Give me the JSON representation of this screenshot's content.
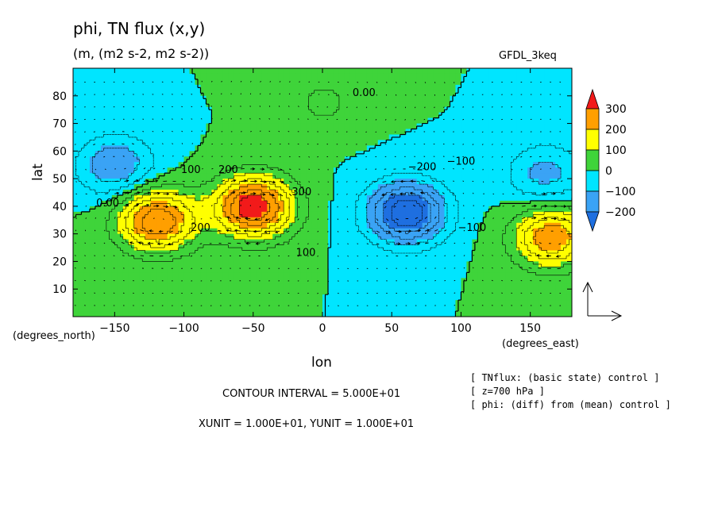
{
  "chart_data": {
    "type": "heatmap",
    "title": "phi, TN flux (x,y)",
    "subtitle": "(m, (m2 s-2, m2 s-2))",
    "model_label": "GFDL_3keq",
    "xlabel": "lon",
    "ylabel": "lat",
    "x_unit_label": "(degrees_east)",
    "y_unit_label": "(degrees_north)",
    "xlim": [
      -180,
      180
    ],
    "ylim": [
      0,
      90
    ],
    "x_ticks": [
      -150,
      -100,
      -50,
      0,
      50,
      100,
      150
    ],
    "x_tick_labels": [
      "−150",
      "−100",
      "−50",
      "0",
      "50",
      "100",
      "150"
    ],
    "y_ticks": [
      10,
      20,
      30,
      40,
      50,
      60,
      70,
      80
    ],
    "colorbar": {
      "levels": [
        -250,
        -200,
        -100,
        0,
        100,
        200,
        300,
        350
      ],
      "tick_labels": [
        "300",
        "200",
        "100",
        "0",
        "−100",
        "−200"
      ],
      "colors": [
        "#1e6fe0",
        "#3aa3f5",
        "#00e5ff",
        "#3fd43a",
        "#ffff00",
        "#ff9f00",
        "#f21a1a"
      ]
    },
    "field_centers": [
      {
        "lon": -50,
        "lat": 40,
        "value": 350
      },
      {
        "lon": -120,
        "lat": 35,
        "value": 300
      },
      {
        "lon": 165,
        "lat": 29,
        "value": 250
      },
      {
        "lon": 60,
        "lat": 38,
        "value": -300
      },
      {
        "lon": -150,
        "lat": 55,
        "value": -150
      },
      {
        "lon": 0,
        "lat": 78,
        "value": 60
      },
      {
        "lon": 160,
        "lat": 52,
        "value": -120
      }
    ],
    "contour_labels": [
      {
        "text": "0.00",
        "lon": 30,
        "lat": 80
      },
      {
        "text": "100",
        "lon": -95,
        "lat": 52
      },
      {
        "text": "200",
        "lon": -68,
        "lat": 52
      },
      {
        "text": "300",
        "lon": -15,
        "lat": 44
      },
      {
        "text": "200",
        "lon": -88,
        "lat": 31
      },
      {
        "text": "100",
        "lon": -12,
        "lat": 22
      },
      {
        "text": "0.00",
        "lon": -155,
        "lat": 40
      },
      {
        "text": "−200",
        "lon": 72,
        "lat": 53
      },
      {
        "text": "−100",
        "lon": 100,
        "lat": 55
      },
      {
        "text": "−100",
        "lon": 108,
        "lat": 31
      }
    ],
    "reference_vector": {
      "x": 1,
      "y": 1
    }
  },
  "annotations": {
    "contour_interval": "CONTOUR INTERVAL = 5.000E+01",
    "units": "XUNIT = 1.000E+01, YUNIT = 1.000E+01",
    "info_line1": "[ TNflux: (basic state) control ]",
    "info_line2": "[ z=700 hPa ]",
    "info_line3": "[ phi: (diff) from (mean) control ]"
  }
}
